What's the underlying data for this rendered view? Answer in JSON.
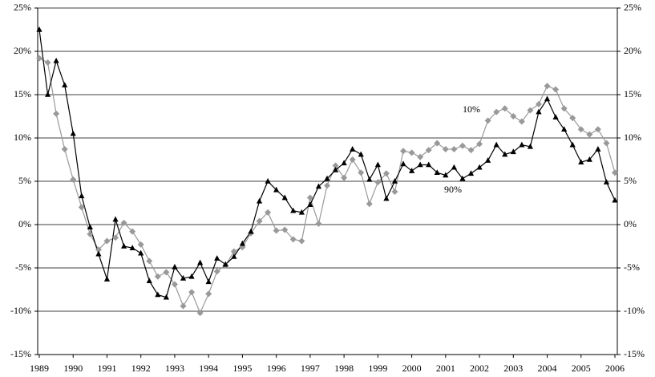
{
  "chart_data": {
    "type": "line",
    "categories": [
      "1989",
      null,
      null,
      null,
      "1990",
      null,
      null,
      null,
      "1991",
      null,
      null,
      null,
      "1992",
      null,
      null,
      null,
      "1993",
      null,
      null,
      null,
      "1994",
      null,
      null,
      null,
      "1995",
      null,
      null,
      null,
      "1996",
      null,
      null,
      null,
      "1997",
      null,
      null,
      null,
      "1998",
      null,
      null,
      null,
      "1999",
      null,
      null,
      null,
      "2000",
      null,
      null,
      null,
      "2001",
      null,
      null,
      null,
      "2002",
      null,
      null,
      null,
      "2003",
      null,
      null,
      null,
      "2004",
      null,
      null,
      null,
      "2005",
      null,
      null,
      null,
      "2006"
    ],
    "series": [
      {
        "name": "10%",
        "color": "#999999",
        "marker": "diamond",
        "values": [
          19.2,
          18.7,
          12.8,
          8.7,
          5.2,
          2.0,
          -1.1,
          -2.9,
          -1.9,
          -1.5,
          0.2,
          -0.8,
          -2.3,
          -4.2,
          -6.0,
          -5.5,
          -6.9,
          -9.4,
          -7.8,
          -10.2,
          -8.0,
          -5.4,
          -4.7,
          -3.1,
          -2.6,
          -1.0,
          0.4,
          1.4,
          -0.7,
          -0.6,
          -1.7,
          -1.9,
          3.1,
          0.1,
          4.5,
          6.8,
          5.4,
          7.5,
          6.0,
          2.4,
          4.9,
          5.9,
          3.8,
          8.5,
          8.3,
          7.8,
          8.6,
          9.4,
          8.7,
          8.7,
          9.1,
          8.6,
          9.3,
          12.0,
          13.0,
          13.4,
          12.5,
          11.9,
          13.2,
          13.9,
          16.0,
          15.6,
          13.4,
          12.3,
          11.0,
          10.4,
          11.0,
          9.4,
          6.0
        ]
      },
      {
        "name": "90%",
        "color": "#000000",
        "marker": "triangle",
        "values": [
          22.5,
          15.0,
          18.9,
          16.1,
          10.5,
          3.3,
          -0.3,
          -3.4,
          -6.3,
          0.6,
          -2.5,
          -2.7,
          -3.3,
          -6.5,
          -8.1,
          -8.4,
          -4.9,
          -6.2,
          -6.0,
          -4.4,
          -6.6,
          -3.9,
          -4.6,
          -3.7,
          -2.2,
          -0.8,
          2.7,
          5.0,
          4.0,
          3.1,
          1.6,
          1.4,
          2.3,
          4.4,
          5.3,
          6.3,
          7.1,
          8.7,
          8.1,
          5.2,
          6.9,
          3.0,
          5.0,
          7.0,
          6.2,
          6.9,
          6.9,
          6.0,
          5.7,
          6.6,
          5.3,
          5.9,
          6.6,
          7.4,
          9.2,
          8.1,
          8.4,
          9.2,
          9.0,
          13.0,
          14.5,
          12.4,
          11.0,
          9.2,
          7.2,
          7.5,
          8.7,
          4.9,
          2.8
        ]
      }
    ],
    "ylim": [
      -15,
      25
    ],
    "yticks": [
      {
        "value": -15,
        "label": "-15%"
      },
      {
        "value": -10,
        "label": "-10%"
      },
      {
        "value": -5,
        "label": "-5%"
      },
      {
        "value": 0,
        "label": "0%"
      },
      {
        "value": 5,
        "label": "5%"
      },
      {
        "value": 10,
        "label": "10%"
      },
      {
        "value": 15,
        "label": "15%"
      },
      {
        "value": 20,
        "label": "20%"
      },
      {
        "value": 25,
        "label": "25%"
      }
    ],
    "y2lim": [
      -15,
      25
    ],
    "y2ticks": [
      {
        "value": -15,
        "label": "-15%"
      },
      {
        "value": -10,
        "label": "-10%"
      },
      {
        "value": -5,
        "label": "-5%"
      },
      {
        "value": 0,
        "label": "0%"
      },
      {
        "value": 5,
        "label": "5%"
      },
      {
        "value": 10,
        "label": "10%"
      },
      {
        "value": 15,
        "label": "15%"
      },
      {
        "value": 20,
        "label": "20%"
      },
      {
        "value": 25,
        "label": "25%"
      }
    ],
    "grid": true
  }
}
